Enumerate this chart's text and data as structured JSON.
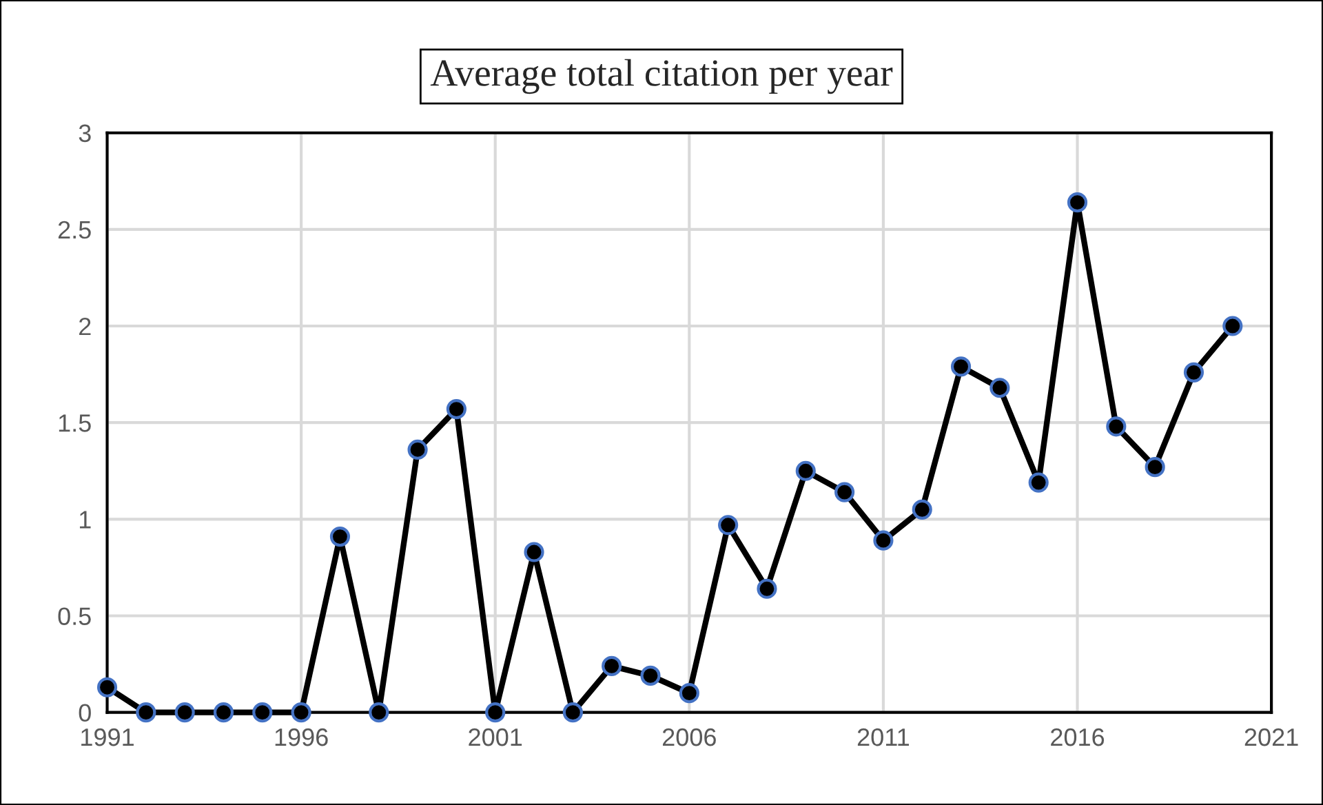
{
  "chart_data": {
    "type": "line",
    "title": "Average total citation per year",
    "x": [
      1991,
      1992,
      1993,
      1994,
      1995,
      1996,
      1997,
      1998,
      1999,
      2000,
      2001,
      2002,
      2003,
      2004,
      2005,
      2006,
      2007,
      2008,
      2009,
      2010,
      2011,
      2012,
      2013,
      2014,
      2015,
      2016,
      2017,
      2018,
      2019,
      2020
    ],
    "series": [
      {
        "color": "#000000",
        "values": [
          0.13,
          0,
          0,
          0,
          0,
          0,
          0.91,
          0,
          1.36,
          1.57,
          0,
          0.83,
          0,
          0.24,
          0.19,
          0.1,
          0.97,
          0.64,
          1.25,
          1.14,
          0.89,
          1.05,
          1.79,
          1.68,
          1.19,
          2.64,
          1.48,
          1.27,
          1.76,
          2.0
        ]
      }
    ],
    "xlim": [
      1991,
      2021
    ],
    "xticks": [
      1991,
      1996,
      2001,
      2006,
      2011,
      2016,
      2021
    ],
    "ylim": [
      0,
      3
    ],
    "yticks": [
      0,
      0.5,
      1,
      1.5,
      2,
      2.5,
      3
    ],
    "grid": true,
    "marker": "circle",
    "line_style": "solid"
  }
}
